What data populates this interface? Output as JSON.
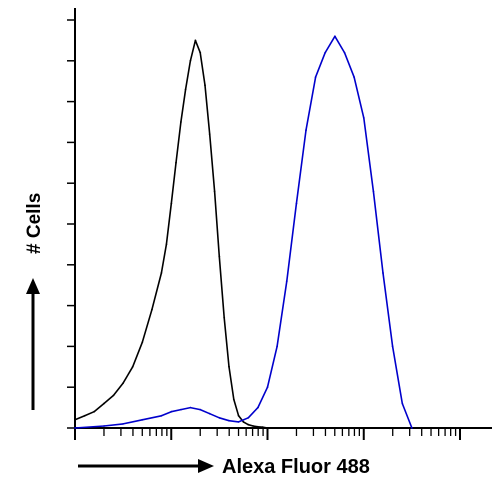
{
  "chart_data": {
    "type": "line",
    "title": "",
    "xlabel": "Alexa Fluor 488",
    "ylabel": "# Cells",
    "x_scale": "log",
    "xlim": [
      1,
      10000
    ],
    "ylim": [
      0,
      100
    ],
    "grid": false,
    "legend": "none",
    "series": [
      {
        "color": "#000000",
        "x": [
          1,
          1.26,
          1.58,
          2.0,
          2.51,
          3.16,
          3.98,
          5.0,
          6.3,
          7.9,
          8.9,
          10.0,
          11.2,
          12.6,
          14.1,
          15.8,
          17.8,
          20.0,
          22.4,
          25.1,
          28.2,
          31.6,
          35.5,
          39.8,
          44.7,
          50.1,
          56.2,
          63.1,
          70.8,
          79.4,
          89.1,
          100
        ],
        "y": [
          2,
          3,
          4,
          6,
          8,
          11,
          15,
          21,
          29,
          38,
          45,
          55,
          65,
          75,
          83,
          90,
          95,
          92,
          84,
          72,
          58,
          42,
          27,
          15,
          7,
          3,
          1.5,
          0.8,
          0.5,
          0.3,
          0.2,
          0
        ]
      },
      {
        "color": "#0000cc",
        "x": [
          1,
          2.0,
          3.16,
          5.0,
          7.9,
          10.0,
          12.6,
          15.8,
          20.0,
          25.1,
          31.6,
          39.8,
          50.1,
          63.1,
          79.4,
          100,
          125.9,
          158.5,
          199.5,
          251.2,
          316.2,
          398.1,
          501.2,
          631.0,
          794.3,
          1000,
          1258.9,
          1584.9,
          1995.3,
          2511.9,
          3162.3
        ],
        "y": [
          0,
          0.5,
          1,
          2,
          3,
          4,
          4.5,
          5,
          4.5,
          3.5,
          2.5,
          1.8,
          1.5,
          2.5,
          5,
          10,
          20,
          36,
          55,
          73,
          86,
          92,
          96,
          92,
          86,
          76,
          58,
          38,
          20,
          6,
          0
        ]
      }
    ]
  }
}
